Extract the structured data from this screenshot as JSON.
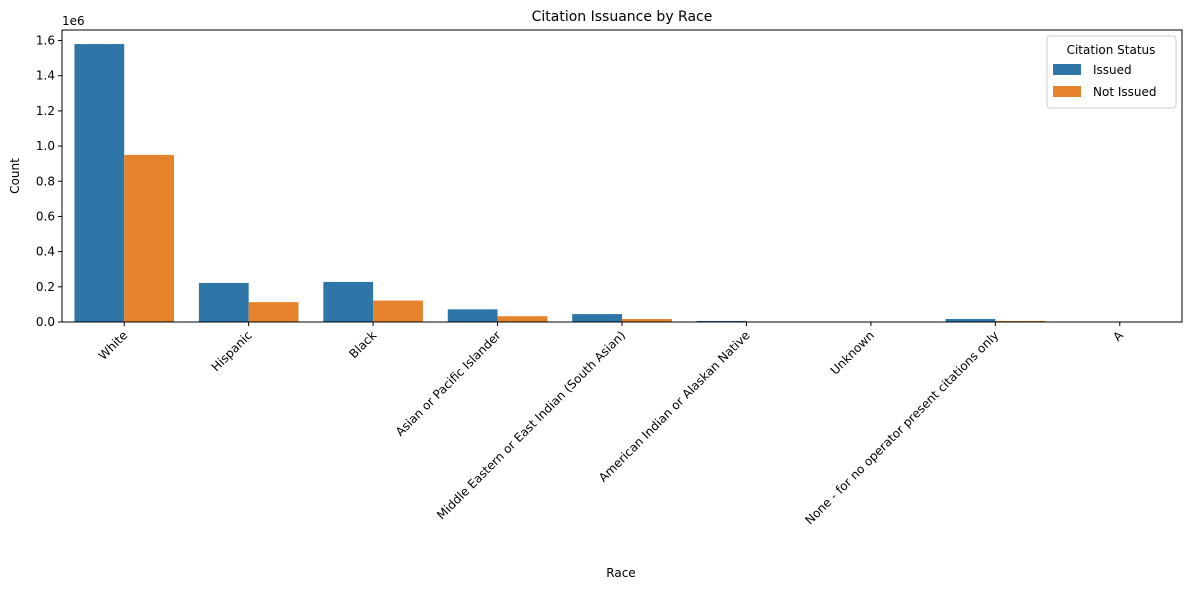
{
  "chart_data": {
    "type": "bar",
    "title": "Citation Issuance by Race",
    "xlabel": "Race",
    "ylabel": "Count",
    "y_offset_label": "1e6",
    "ylim": [
      0,
      1.66
    ],
    "y_ticks": [
      0.0,
      0.2,
      0.4,
      0.6,
      0.8,
      1.0,
      1.2,
      1.4,
      1.6
    ],
    "y_tick_labels": [
      "0.0",
      "0.2",
      "0.4",
      "0.6",
      "0.8",
      "1.0",
      "1.2",
      "1.4",
      "1.6"
    ],
    "y_scale_note": "values in units of 1e6",
    "grid": false,
    "legend_title": "Citation Status",
    "legend_position": "upper-right",
    "categories": [
      "White",
      "Hispanic",
      "Black",
      "Asian or Pacific Islander",
      "Middle Eastern or East Indian (South Asian)",
      "American Indian or Alaskan Native",
      "Unknown",
      "None - for no operator present citations only",
      "A"
    ],
    "series": [
      {
        "name": "Issued",
        "color": "#2e75a8",
        "values": [
          1.58,
          0.222,
          0.228,
          0.072,
          0.045,
          0.006,
          0.001,
          0.017,
          0.0
        ]
      },
      {
        "name": "Not Issued",
        "color": "#e5832c",
        "values": [
          0.95,
          0.113,
          0.122,
          0.033,
          0.017,
          0.003,
          0.0005,
          0.006,
          0.0
        ]
      }
    ]
  }
}
